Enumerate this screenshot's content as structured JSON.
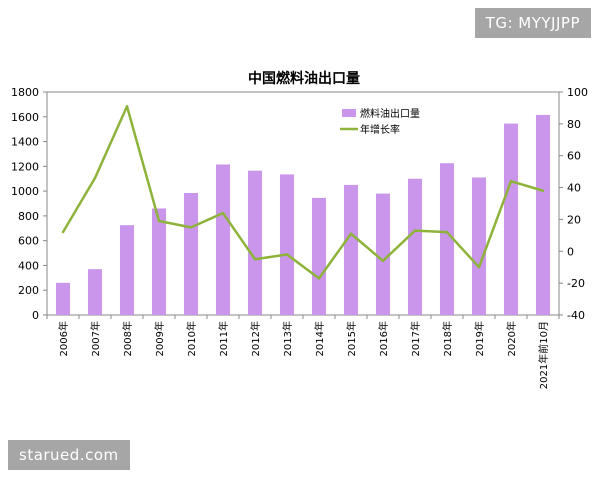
{
  "watermarks": {
    "top_right": "TG: MYYJJPP",
    "bottom_left": "starued.com"
  },
  "chart_data": {
    "type": "bar",
    "title": "中国燃料油出口量",
    "categories": [
      "2006年",
      "2007年",
      "2008年",
      "2009年",
      "2010年",
      "2011年",
      "2012年",
      "2013年",
      "2014年",
      "2015年",
      "2016年",
      "2017年",
      "2018年",
      "2019年",
      "2020年",
      "2021年前10月"
    ],
    "series": [
      {
        "name": "燃料油出口量",
        "type": "bar",
        "axis": "left",
        "color": "#c996ec",
        "values": [
          260,
          370,
          725,
          860,
          985,
          1215,
          1165,
          1135,
          945,
          1050,
          980,
          1100,
          1225,
          1110,
          1545,
          1615
        ]
      },
      {
        "name": "年增长率",
        "type": "line",
        "axis": "right",
        "color": "#8db33a",
        "values": [
          12,
          46,
          91,
          19,
          15,
          24,
          -5,
          -2,
          -17,
          11,
          -6,
          13,
          12,
          -10,
          44,
          38
        ]
      }
    ],
    "left_axis": {
      "range": [
        0,
        1800
      ],
      "ticks": [
        "0",
        "200",
        "400",
        "600",
        "800",
        "1000",
        "1200",
        "1400",
        "1600",
        "1800"
      ]
    },
    "right_axis": {
      "range": [
        -40,
        100
      ],
      "ticks": [
        "-40",
        "-20",
        "0",
        "20",
        "40",
        "60",
        "80",
        "100"
      ]
    },
    "grid": false,
    "legend_position": "top-right"
  }
}
